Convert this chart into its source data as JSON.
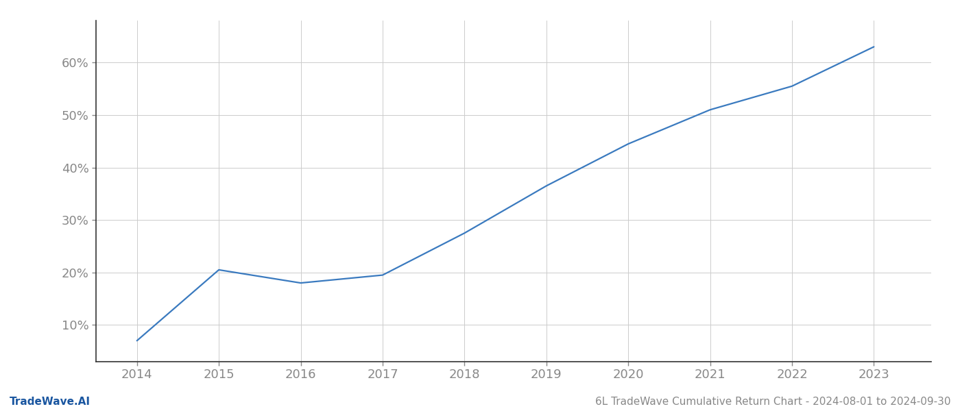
{
  "years": [
    2014,
    2015,
    2016,
    2017,
    2018,
    2019,
    2020,
    2021,
    2022,
    2023
  ],
  "values": [
    7.0,
    20.5,
    18.0,
    19.5,
    27.5,
    36.5,
    44.5,
    51.0,
    55.5,
    63.0
  ],
  "line_color": "#3a7abf",
  "line_width": 1.6,
  "background_color": "#ffffff",
  "grid_color": "#cccccc",
  "tick_color": "#888888",
  "yticks": [
    10,
    20,
    30,
    40,
    50,
    60
  ],
  "xlim": [
    2013.5,
    2023.7
  ],
  "ylim": [
    3,
    68
  ],
  "footer_left": "TradeWave.AI",
  "footer_right": "6L TradeWave Cumulative Return Chart - 2024-08-01 to 2024-09-30",
  "footer_color": "#888888",
  "footer_left_color": "#1a56a0",
  "spine_color": "#333333",
  "tick_fontsize": 13,
  "footer_fontsize": 11
}
